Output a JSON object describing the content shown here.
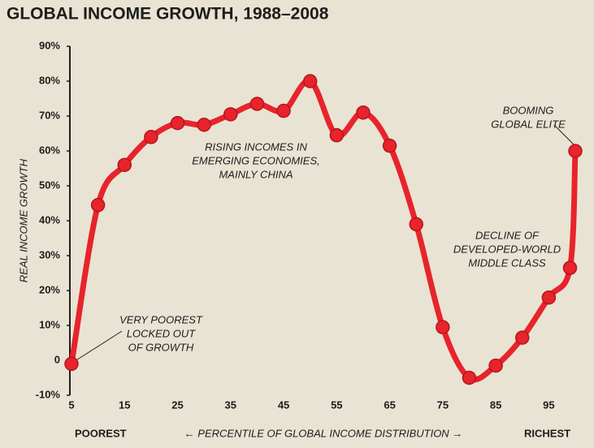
{
  "chart_data": {
    "type": "line",
    "title": "GLOBAL INCOME GROWTH, 1988–2008",
    "y_label": "REAL INCOME GROWTH",
    "x_label": "← PERCENTILE OF GLOBAL INCOME DISTRIBUTION →",
    "x_left_label": "POOREST",
    "x_right_label": "RICHEST",
    "x": [
      5,
      10,
      15,
      20,
      25,
      30,
      35,
      40,
      45,
      50,
      55,
      60,
      65,
      70,
      75,
      80,
      85,
      90,
      95,
      99,
      100
    ],
    "series": [
      {
        "name": "Real income growth",
        "color": "#e8232b",
        "values": [
          -1,
          44.5,
          56,
          64,
          68,
          67.5,
          70.5,
          73.5,
          71.5,
          80,
          64.5,
          71,
          61.5,
          39,
          9.5,
          -5,
          -1.5,
          6.5,
          18,
          26.5,
          60
        ]
      }
    ],
    "xlim": [
      5,
      100
    ],
    "xticks": [
      5,
      15,
      25,
      35,
      45,
      55,
      65,
      75,
      85,
      95
    ],
    "ylim": [
      -10,
      90
    ],
    "yticks": [
      {
        "value": -10,
        "label": "-10%"
      },
      0,
      {
        "value": 10,
        "label": "10%"
      },
      {
        "value": 20,
        "label": "20%"
      },
      {
        "value": 30,
        "label": "30%"
      },
      {
        "value": 40,
        "label": "40%"
      },
      {
        "value": 50,
        "label": "50%"
      },
      {
        "value": 60,
        "label": "60%"
      },
      {
        "value": 70,
        "label": "70%"
      },
      {
        "value": 80,
        "label": "80%"
      },
      {
        "value": 90,
        "label": "90%"
      }
    ],
    "annotations": [
      {
        "lines": [
          "RISING INCOMES IN",
          "EMERGING ECONOMIES,",
          "MAINLY CHINA"
        ]
      },
      {
        "lines": [
          "VERY POOREST",
          "LOCKED OUT",
          "OF GROWTH"
        ]
      },
      {
        "lines": [
          "BOOMING",
          "GLOBAL ELITE"
        ]
      },
      {
        "lines": [
          "DECLINE OF",
          "DEVELOPED-WORLD",
          "MIDDLE CLASS"
        ]
      }
    ]
  }
}
